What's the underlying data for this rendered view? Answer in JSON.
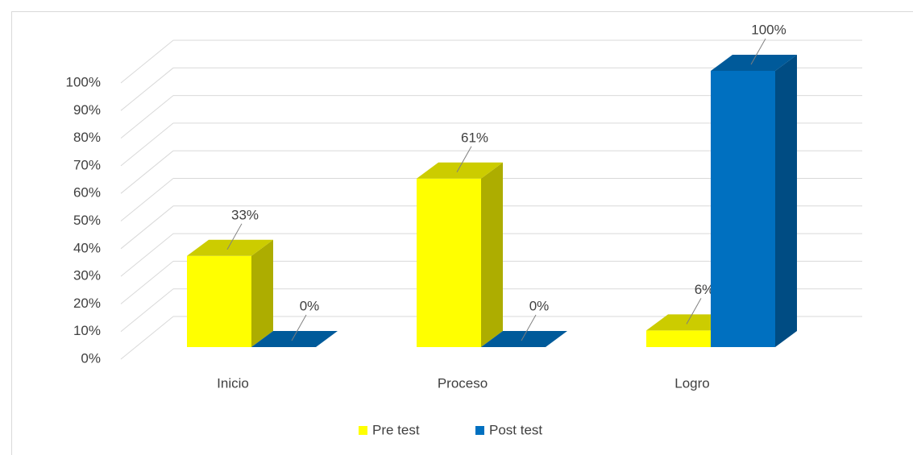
{
  "chart_data": {
    "type": "bar3d",
    "categories": [
      "Inicio",
      "Proceso",
      "Logro"
    ],
    "series": [
      {
        "name": "Pre test",
        "color": "#ffff00",
        "values": [
          33,
          61,
          6
        ],
        "value_labels": [
          "33%",
          "61%",
          "6%"
        ]
      },
      {
        "name": "Post test",
        "color": "#0070c0",
        "values": [
          0,
          0,
          100
        ],
        "value_labels": [
          "0%",
          "0%",
          "100%"
        ]
      }
    ],
    "ylim": [
      0,
      100
    ],
    "yticks": [
      {
        "value": 0,
        "label": "0%"
      },
      {
        "value": 10,
        "label": "10%"
      },
      {
        "value": 20,
        "label": "20%"
      },
      {
        "value": 30,
        "label": "30%"
      },
      {
        "value": 40,
        "label": "40%"
      },
      {
        "value": 50,
        "label": "50%"
      },
      {
        "value": 60,
        "label": "60%"
      },
      {
        "value": 70,
        "label": "70%"
      },
      {
        "value": 80,
        "label": "80%"
      },
      {
        "value": 90,
        "label": "90%"
      },
      {
        "value": 100,
        "label": "100%"
      }
    ],
    "grid": true,
    "legend": "bottom"
  }
}
